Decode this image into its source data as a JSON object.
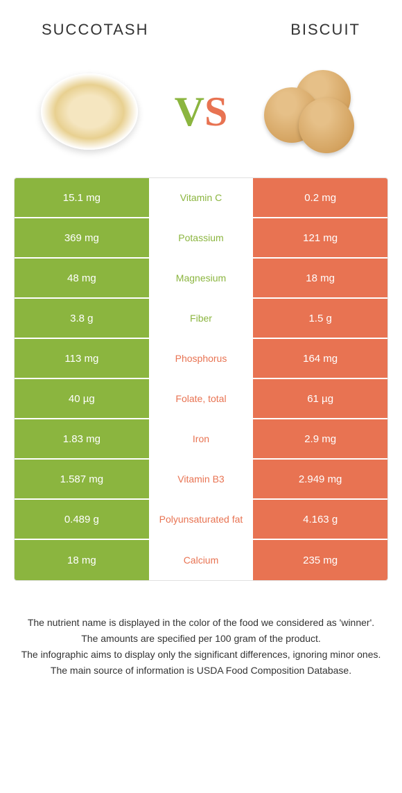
{
  "header": {
    "left_title": "Succotash",
    "right_title": "Biscuit"
  },
  "vs": {
    "v": "V",
    "s": "S"
  },
  "colors": {
    "green": "#8bb53f",
    "orange": "#e87352"
  },
  "table": {
    "rows": [
      {
        "left": "15.1 mg",
        "mid": "Vitamin C",
        "right": "0.2 mg",
        "winner": "green"
      },
      {
        "left": "369 mg",
        "mid": "Potassium",
        "right": "121 mg",
        "winner": "green"
      },
      {
        "left": "48 mg",
        "mid": "Magnesium",
        "right": "18 mg",
        "winner": "green"
      },
      {
        "left": "3.8 g",
        "mid": "Fiber",
        "right": "1.5 g",
        "winner": "green"
      },
      {
        "left": "113 mg",
        "mid": "Phosphorus",
        "right": "164 mg",
        "winner": "orange"
      },
      {
        "left": "40 µg",
        "mid": "Folate, total",
        "right": "61 µg",
        "winner": "orange"
      },
      {
        "left": "1.83 mg",
        "mid": "Iron",
        "right": "2.9 mg",
        "winner": "orange"
      },
      {
        "left": "1.587 mg",
        "mid": "Vitamin B3",
        "right": "2.949 mg",
        "winner": "orange"
      },
      {
        "left": "0.489 g",
        "mid": "Polyunsaturated fat",
        "right": "4.163 g",
        "winner": "orange"
      },
      {
        "left": "18 mg",
        "mid": "Calcium",
        "right": "235 mg",
        "winner": "orange"
      }
    ]
  },
  "footer": {
    "line1": "The nutrient name is displayed in the color of the food we considered as 'winner'.",
    "line2": "The amounts are specified per 100 gram of the product.",
    "line3": "The infographic aims to display only the significant differences, ignoring minor ones.",
    "line4": "The main source of information is USDA Food Composition Database."
  }
}
